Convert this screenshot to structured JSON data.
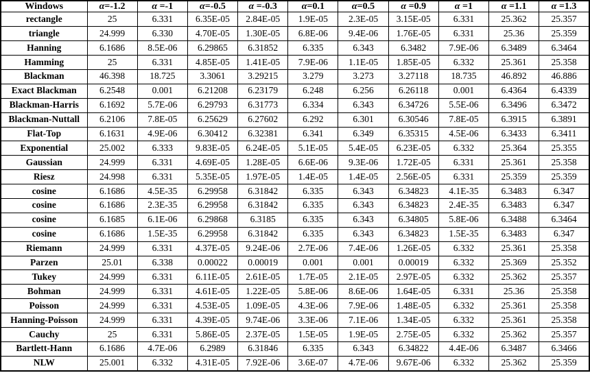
{
  "table": {
    "corner_header": "Windows",
    "alpha_symbol": "α",
    "alpha_headers": [
      "=-1.2",
      " =-1",
      "=-0.5",
      " =-0.3",
      "=0.1",
      "=0.5",
      " =0.9",
      " =1",
      " =1.1",
      " =1.3"
    ],
    "rows": [
      {
        "name": "rectangle",
        "values": [
          "25",
          "6.331",
          "6.35E-05",
          "2.84E-05",
          "1.9E-05",
          "2.3E-05",
          "3.15E-05",
          "6.331",
          "25.362",
          "25.357"
        ]
      },
      {
        "name": "triangle",
        "values": [
          "24.999",
          "6.330",
          "4.70E-05",
          "1.30E-05",
          "6.8E-06",
          "9.4E-06",
          "1.76E-05",
          "6.331",
          "25.36",
          "25.359"
        ]
      },
      {
        "name": "Hanning",
        "values": [
          "6.1686",
          "8.5E-06",
          "6.29865",
          "6.31852",
          "6.335",
          "6.343",
          "6.3482",
          "7.9E-06",
          "6.3489",
          "6.3464"
        ]
      },
      {
        "name": "Hamming",
        "values": [
          "25",
          "6.331",
          "4.85E-05",
          "1.41E-05",
          "7.9E-06",
          "1.1E-05",
          "1.85E-05",
          "6.332",
          "25.361",
          "25.358"
        ]
      },
      {
        "name": "Blackman",
        "values": [
          "46.398",
          "18.725",
          "3.3061",
          "3.29215",
          "3.279",
          "3.273",
          "3.27118",
          "18.735",
          "46.892",
          "46.886"
        ]
      },
      {
        "name": "Exact Blackman",
        "values": [
          "6.2548",
          "0.001",
          "6.21208",
          "6.23179",
          "6.248",
          "6.256",
          "6.26118",
          "0.001",
          "6.4364",
          "6.4339"
        ]
      },
      {
        "name": "Blackman-Harris",
        "values": [
          "6.1692",
          "5.7E-06",
          "6.29793",
          "6.31773",
          "6.334",
          "6.343",
          "6.34726",
          "5.5E-06",
          "6.3496",
          "6.3472"
        ]
      },
      {
        "name": "Blackman-Nuttall",
        "values": [
          "6.2106",
          "7.8E-05",
          "6.25629",
          "6.27602",
          "6.292",
          "6.301",
          "6.30546",
          "7.8E-05",
          "6.3915",
          "6.3891"
        ]
      },
      {
        "name": "Flat-Top",
        "values": [
          "6.1631",
          "4.9E-06",
          "6.30412",
          "6.32381",
          "6.341",
          "6.349",
          "6.35315",
          "4.5E-06",
          "6.3433",
          "6.3411"
        ]
      },
      {
        "name": "Exponential",
        "values": [
          "25.002",
          "6.333",
          "9.83E-05",
          "6.24E-05",
          "5.1E-05",
          "5.4E-05",
          "6.23E-05",
          "6.332",
          "25.364",
          "25.355"
        ]
      },
      {
        "name": "Gaussian",
        "values": [
          "24.999",
          "6.331",
          "4.69E-05",
          "1.28E-05",
          "6.6E-06",
          "9.3E-06",
          "1.72E-05",
          "6.331",
          "25.361",
          "25.358"
        ]
      },
      {
        "name": "Riesz",
        "values": [
          "24.998",
          "6.331",
          "5.35E-05",
          "1.97E-05",
          "1.4E-05",
          "1.4E-05",
          "2.56E-05",
          "6.331",
          "25.359",
          "25.359"
        ]
      },
      {
        "name": "cosine",
        "values": [
          "6.1686",
          "4.5E-35",
          "6.29958",
          "6.31842",
          "6.335",
          "6.343",
          "6.34823",
          "4.1E-35",
          "6.3483",
          "6.347"
        ]
      },
      {
        "name": "cosine",
        "values": [
          "6.1686",
          "2.3E-35",
          "6.29958",
          "6.31842",
          "6.335",
          "6.343",
          "6.34823",
          "2.4E-35",
          "6.3483",
          "6.347"
        ]
      },
      {
        "name": "cosine",
        "values": [
          "6.1685",
          "6.1E-06",
          "6.29868",
          "6.3185",
          "6.335",
          "6.343",
          "6.34805",
          "5.8E-06",
          "6.3488",
          "6.3464"
        ]
      },
      {
        "name": "cosine",
        "values": [
          "6.1686",
          "1.5E-35",
          "6.29958",
          "6.31842",
          "6.335",
          "6.343",
          "6.34823",
          "1.5E-35",
          "6.3483",
          "6.347"
        ]
      },
      {
        "name": "Riemann",
        "values": [
          "24.999",
          "6.331",
          "4.37E-05",
          "9.24E-06",
          "2.7E-06",
          "7.4E-06",
          "1.26E-05",
          "6.332",
          "25.361",
          "25.358"
        ]
      },
      {
        "name": "Parzen",
        "values": [
          "25.01",
          "6.338",
          "0.00022",
          "0.00019",
          "0.001",
          "0.001",
          "0.00019",
          "6.332",
          "25.369",
          "25.352"
        ]
      },
      {
        "name": "Tukey",
        "values": [
          "24.999",
          "6.331",
          "6.11E-05",
          "2.61E-05",
          "1.7E-05",
          "2.1E-05",
          "2.97E-05",
          "6.332",
          "25.362",
          "25.357"
        ]
      },
      {
        "name": "Bohman",
        "values": [
          "24.999",
          "6.331",
          "4.61E-05",
          "1.22E-05",
          "5.8E-06",
          "8.6E-06",
          "1.64E-05",
          "6.331",
          "25.36",
          "25.358"
        ]
      },
      {
        "name": "Poisson",
        "values": [
          "24.999",
          "6.331",
          "4.53E-05",
          "1.09E-05",
          "4.3E-06",
          "7.9E-06",
          "1.48E-05",
          "6.332",
          "25.361",
          "25.358"
        ]
      },
      {
        "name": "Hanning-Poisson",
        "values": [
          "24.999",
          "6.331",
          "4.39E-05",
          "9.74E-06",
          "3.3E-06",
          "7.1E-06",
          "1.34E-05",
          "6.332",
          "25.361",
          "25.358"
        ]
      },
      {
        "name": "Cauchy",
        "values": [
          "25",
          "6.331",
          "5.86E-05",
          "2.37E-05",
          "1.5E-05",
          "1.9E-05",
          "2.75E-05",
          "6.332",
          "25.362",
          "25.357"
        ]
      },
      {
        "name": "Bartlett-Hann",
        "values": [
          "6.1686",
          "4.7E-06",
          "6.2989",
          "6.31846",
          "6.335",
          "6.343",
          "6.34822",
          "4.4E-06",
          "6.3487",
          "6.3466"
        ]
      },
      {
        "name": "NLW",
        "values": [
          "25.001",
          "6.332",
          "4.31E-05",
          "7.92E-06",
          "3.6E-07",
          "4.7E-06",
          "9.67E-06",
          "6.332",
          "25.362",
          "25.359"
        ]
      }
    ],
    "colors": {
      "border": "#000000",
      "text": "#000000",
      "background": "#ffffff"
    }
  }
}
